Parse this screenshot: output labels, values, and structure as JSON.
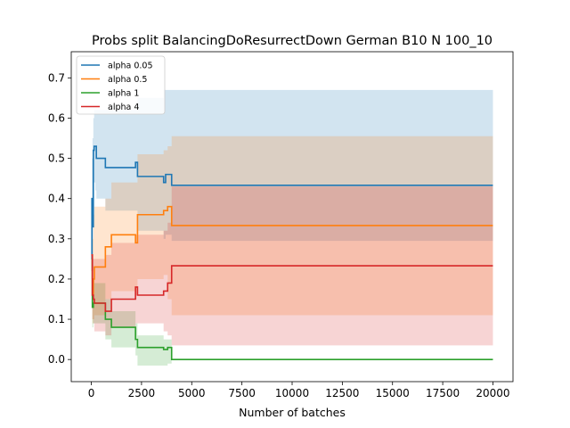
{
  "chart_data": {
    "type": "line",
    "title": "Probs split BalancingDoResurrectDown German B10 N 100_10",
    "xlabel": "Number of batches",
    "ylabel": "",
    "xlim": [
      -1000,
      21000
    ],
    "ylim": [
      -0.055,
      0.765
    ],
    "xticks": [
      0,
      2500,
      5000,
      7500,
      10000,
      12500,
      15000,
      17500,
      20000
    ],
    "xtick_labels": [
      "0",
      "2500",
      "5000",
      "7500",
      "10000",
      "12500",
      "15000",
      "17500",
      "20000"
    ],
    "yticks": [
      0.0,
      0.1,
      0.2,
      0.3,
      0.4,
      0.5,
      0.6,
      0.7
    ],
    "ytick_labels": [
      "0.0",
      "0.1",
      "0.2",
      "0.3",
      "0.4",
      "0.5",
      "0.6",
      "0.7"
    ],
    "grid": false,
    "legend_position": "top-left",
    "series": [
      {
        "name": "alpha 0.05",
        "color": "#1f77b4",
        "x": [
          0,
          30,
          60,
          100,
          140,
          200,
          250,
          700,
          2200,
          2300,
          3600,
          3700,
          4000,
          20000
        ],
        "y": [
          0.25,
          0.4,
          0.33,
          0.52,
          0.53,
          0.53,
          0.5,
          0.477,
          0.49,
          0.455,
          0.44,
          0.46,
          0.433,
          0.433
        ],
        "band_upper": [
          0.27,
          0.5,
          0.55,
          0.6,
          0.62,
          0.62,
          0.62,
          0.62,
          0.62,
          0.65,
          0.67,
          0.67,
          0.67,
          0.67
        ],
        "band_lower": [
          0.22,
          0.25,
          0.22,
          0.44,
          0.44,
          0.42,
          0.4,
          0.37,
          0.37,
          0.32,
          0.3,
          0.31,
          0.295,
          0.295
        ]
      },
      {
        "name": "alpha 0.5",
        "color": "#ff7f0e",
        "x": [
          0,
          50,
          100,
          150,
          300,
          700,
          1000,
          2200,
          2300,
          3600,
          3800,
          4000,
          20000
        ],
        "y": [
          0.26,
          0.16,
          0.2,
          0.23,
          0.23,
          0.28,
          0.31,
          0.29,
          0.36,
          0.37,
          0.38,
          0.333,
          0.333
        ],
        "band_upper": [
          0.28,
          0.3,
          0.36,
          0.38,
          0.38,
          0.4,
          0.44,
          0.44,
          0.51,
          0.52,
          0.53,
          0.555,
          0.555
        ],
        "band_lower": [
          0.2,
          0.09,
          0.1,
          0.11,
          0.11,
          0.15,
          0.17,
          0.16,
          0.2,
          0.21,
          0.15,
          0.11,
          0.11
        ]
      },
      {
        "name": "alpha 1",
        "color": "#2ca02c",
        "x": [
          0,
          50,
          100,
          150,
          300,
          700,
          1000,
          2200,
          2300,
          3600,
          3800,
          4000,
          20000
        ],
        "y": [
          0.25,
          0.13,
          0.14,
          0.14,
          0.14,
          0.1,
          0.08,
          0.05,
          0.03,
          0.025,
          0.03,
          0.0,
          0.0
        ],
        "band_upper": [
          0.27,
          0.2,
          0.2,
          0.19,
          0.19,
          0.15,
          0.12,
          0.09,
          0.06,
          0.05,
          0.05,
          0.0,
          0.0
        ],
        "band_lower": [
          0.22,
          0.08,
          0.09,
          0.09,
          0.09,
          0.05,
          0.03,
          0.01,
          -0.015,
          -0.015,
          -0.01,
          0.0,
          0.0
        ]
      },
      {
        "name": "alpha 4",
        "color": "#d62728",
        "x": [
          0,
          50,
          100,
          150,
          300,
          700,
          1000,
          2200,
          2300,
          3600,
          3800,
          4000,
          20000
        ],
        "y": [
          0.26,
          0.16,
          0.15,
          0.14,
          0.14,
          0.12,
          0.15,
          0.18,
          0.16,
          0.17,
          0.19,
          0.233,
          0.233
        ],
        "band_upper": [
          0.28,
          0.25,
          0.25,
          0.25,
          0.25,
          0.26,
          0.29,
          0.31,
          0.31,
          0.32,
          0.34,
          0.43,
          0.43
        ],
        "band_lower": [
          0.22,
          0.1,
          0.09,
          0.07,
          0.07,
          0.06,
          0.08,
          0.09,
          0.09,
          0.07,
          0.06,
          0.035,
          0.035
        ]
      }
    ]
  }
}
